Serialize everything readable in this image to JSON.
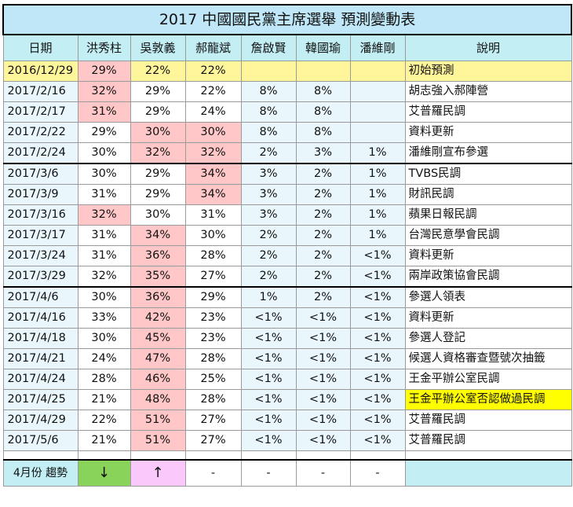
{
  "title": "2017 中國國民黨主席選舉 預測變動表",
  "headers": [
    "日期",
    "洪秀柱",
    "吳敦義",
    "郝龍斌",
    "詹啟賢",
    "韓國瑜",
    "潘維剛",
    "說明"
  ],
  "rows": [
    {
      "date": "2016/12/29",
      "v": [
        "29%",
        "22%",
        "22%",
        "",
        "",
        ""
      ],
      "note": "初始預測"
    },
    {
      "date": "2017/2/16",
      "v": [
        "32%",
        "29%",
        "22%",
        "8%",
        "8%",
        ""
      ],
      "note": "胡志強入郝陣營"
    },
    {
      "date": "2017/2/17",
      "v": [
        "31%",
        "29%",
        "24%",
        "8%",
        "8%",
        ""
      ],
      "note": "艾普羅民調"
    },
    {
      "date": "2017/2/22",
      "v": [
        "29%",
        "30%",
        "30%",
        "8%",
        "8%",
        ""
      ],
      "note": "資料更新"
    },
    {
      "date": "2017/2/24",
      "v": [
        "30%",
        "32%",
        "32%",
        "2%",
        "3%",
        "1%"
      ],
      "note": "潘維剛宣布參選"
    },
    {
      "date": "2017/3/6",
      "v": [
        "30%",
        "29%",
        "34%",
        "3%",
        "2%",
        "1%"
      ],
      "note": "TVBS民調"
    },
    {
      "date": "2017/3/9",
      "v": [
        "31%",
        "29%",
        "34%",
        "3%",
        "2%",
        "1%"
      ],
      "note": "財訊民調"
    },
    {
      "date": "2017/3/16",
      "v": [
        "32%",
        "30%",
        "31%",
        "3%",
        "2%",
        "1%"
      ],
      "note": "蘋果日報民調"
    },
    {
      "date": "2017/3/17",
      "v": [
        "31%",
        "34%",
        "30%",
        "2%",
        "2%",
        "1%"
      ],
      "note": "台灣民意學會民調"
    },
    {
      "date": "2017/3/24",
      "v": [
        "31%",
        "36%",
        "28%",
        "2%",
        "2%",
        "<1%"
      ],
      "note": "資料更新"
    },
    {
      "date": "2017/3/29",
      "v": [
        "32%",
        "35%",
        "27%",
        "2%",
        "2%",
        "<1%"
      ],
      "note": "兩岸政策協會民調"
    },
    {
      "date": "2017/4/6",
      "v": [
        "30%",
        "36%",
        "29%",
        "1%",
        "2%",
        "<1%"
      ],
      "note": "參選人領表"
    },
    {
      "date": "2017/4/16",
      "v": [
        "33%",
        "42%",
        "23%",
        "<1%",
        "<1%",
        "<1%"
      ],
      "note": "資料更新"
    },
    {
      "date": "2017/4/18",
      "v": [
        "30%",
        "45%",
        "23%",
        "<1%",
        "<1%",
        "<1%"
      ],
      "note": "參選人登記"
    },
    {
      "date": "2017/4/21",
      "v": [
        "24%",
        "47%",
        "28%",
        "<1%",
        "<1%",
        "<1%"
      ],
      "note": "候選人資格審查暨號次抽籤"
    },
    {
      "date": "2017/4/24",
      "v": [
        "28%",
        "46%",
        "25%",
        "<1%",
        "<1%",
        "<1%"
      ],
      "note": "王金平辦公室民調"
    },
    {
      "date": "2017/4/25",
      "v": [
        "21%",
        "48%",
        "28%",
        "<1%",
        "<1%",
        "<1%"
      ],
      "note": "王金平辦公室否認做過民調"
    },
    {
      "date": "2017/4/29",
      "v": [
        "22%",
        "51%",
        "27%",
        "<1%",
        "<1%",
        "<1%"
      ],
      "note": "艾普羅民調"
    },
    {
      "date": "2017/5/6",
      "v": [
        "21%",
        "51%",
        "27%",
        "<1%",
        "<1%",
        "<1%"
      ],
      "note": "艾普羅民調"
    }
  ],
  "highlights": {
    "red_bg": [
      "0-0",
      "1-0",
      "2-0",
      "3-1",
      "3-2",
      "4-1",
      "4-2",
      "5-2",
      "6-2",
      "7-0",
      "8-1",
      "9-1",
      "10-1",
      "11-1",
      "12-1",
      "13-1",
      "14-1",
      "15-1",
      "16-1",
      "17-1",
      "18-1"
    ],
    "red_text": [
      "0-0",
      "1-0",
      "2-0",
      "17-1",
      "18-1"
    ],
    "yellow_row": [
      0
    ],
    "note_yellow": [
      16
    ],
    "group_starts": [
      5,
      11
    ]
  },
  "footer": {
    "label": "4月份 趨勢",
    "trends": [
      "↓",
      "↑",
      "-",
      "-",
      "-",
      "-"
    ],
    "note": ""
  },
  "colors": {
    "header_bg": "#c2eef4",
    "title_bg": "#bfe7f7",
    "highlight_red": "#ffc7c7",
    "row_yellow": "#fff59b",
    "trend_down": "#8ad35a",
    "trend_up": "#fac8fa"
  }
}
